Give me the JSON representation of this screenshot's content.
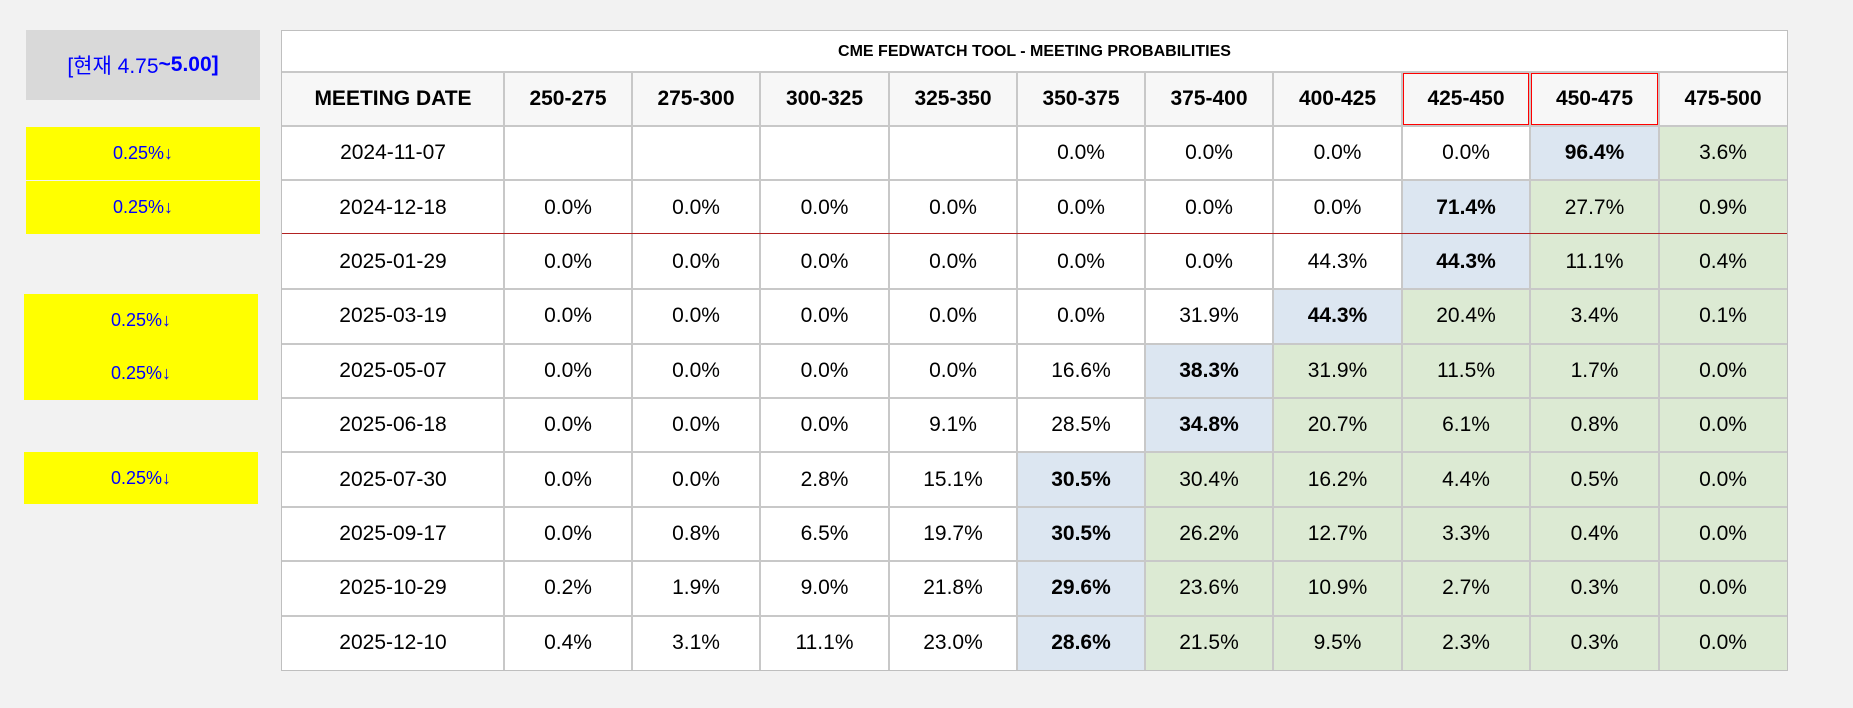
{
  "current_rate": {
    "prefix": "[현재 4.75",
    "suffix": "~5.00]"
  },
  "cuts": [
    {
      "label": "0.25%↓",
      "row": 0
    },
    {
      "label": "0.25%↓",
      "row": 1
    },
    {
      "label": "0.25%↓",
      "row": 3
    },
    {
      "label": "0.25%↓",
      "row": 4
    },
    {
      "label": "0.25%↓",
      "row": 6
    }
  ],
  "table": {
    "title": "CME FEDWATCH TOOL - MEETING PROBABILITIES",
    "headers": [
      "MEETING DATE",
      "250-275",
      "275-300",
      "300-325",
      "325-350",
      "350-375",
      "375-400",
      "400-425",
      "425-450",
      "450-475",
      "475-500"
    ],
    "highlighted_headers": [
      8,
      9
    ],
    "rows": [
      {
        "date": "2024-11-07",
        "values": [
          "",
          "",
          "",
          "",
          "0.0%",
          "0.0%",
          "0.0%",
          "0.0%",
          "96.4%",
          "3.6%"
        ],
        "max_index": 8
      },
      {
        "date": "2024-12-18",
        "values": [
          "0.0%",
          "0.0%",
          "0.0%",
          "0.0%",
          "0.0%",
          "0.0%",
          "0.0%",
          "71.4%",
          "27.7%",
          "0.9%"
        ],
        "max_index": 7
      },
      {
        "date": "2025-01-29",
        "values": [
          "0.0%",
          "0.0%",
          "0.0%",
          "0.0%",
          "0.0%",
          "0.0%",
          "44.3%",
          "44.3%",
          "11.1%",
          "0.4%"
        ],
        "max_index": 7
      },
      {
        "date": "2025-03-19",
        "values": [
          "0.0%",
          "0.0%",
          "0.0%",
          "0.0%",
          "0.0%",
          "31.9%",
          "44.3%",
          "20.4%",
          "3.4%",
          "0.1%"
        ],
        "max_index": 6
      },
      {
        "date": "2025-05-07",
        "values": [
          "0.0%",
          "0.0%",
          "0.0%",
          "0.0%",
          "16.6%",
          "38.3%",
          "31.9%",
          "11.5%",
          "1.7%",
          "0.0%"
        ],
        "max_index": 5
      },
      {
        "date": "2025-06-18",
        "values": [
          "0.0%",
          "0.0%",
          "0.0%",
          "9.1%",
          "28.5%",
          "34.8%",
          "20.7%",
          "6.1%",
          "0.8%",
          "0.0%"
        ],
        "max_index": 5
      },
      {
        "date": "2025-07-30",
        "values": [
          "0.0%",
          "0.0%",
          "2.8%",
          "15.1%",
          "30.5%",
          "30.4%",
          "16.2%",
          "4.4%",
          "0.5%",
          "0.0%"
        ],
        "max_index": 4
      },
      {
        "date": "2025-09-17",
        "values": [
          "0.0%",
          "0.8%",
          "6.5%",
          "19.7%",
          "30.5%",
          "26.2%",
          "12.7%",
          "3.3%",
          "0.4%",
          "0.0%"
        ],
        "max_index": 4
      },
      {
        "date": "2025-10-29",
        "values": [
          "0.2%",
          "1.9%",
          "9.0%",
          "21.8%",
          "29.6%",
          "23.6%",
          "10.9%",
          "2.7%",
          "0.3%",
          "0.0%"
        ],
        "max_index": 4
      },
      {
        "date": "2025-12-10",
        "values": [
          "0.4%",
          "3.1%",
          "11.1%",
          "23.0%",
          "28.6%",
          "21.5%",
          "9.5%",
          "2.3%",
          "0.3%",
          "0.0%"
        ],
        "max_index": 4
      }
    ]
  },
  "colors": {
    "max_cell": "#dce6f1",
    "above_max": "#dcead3",
    "header_outline": "#ff0000",
    "cut_badge": "#ffff00",
    "cut_text": "#0000ff"
  }
}
